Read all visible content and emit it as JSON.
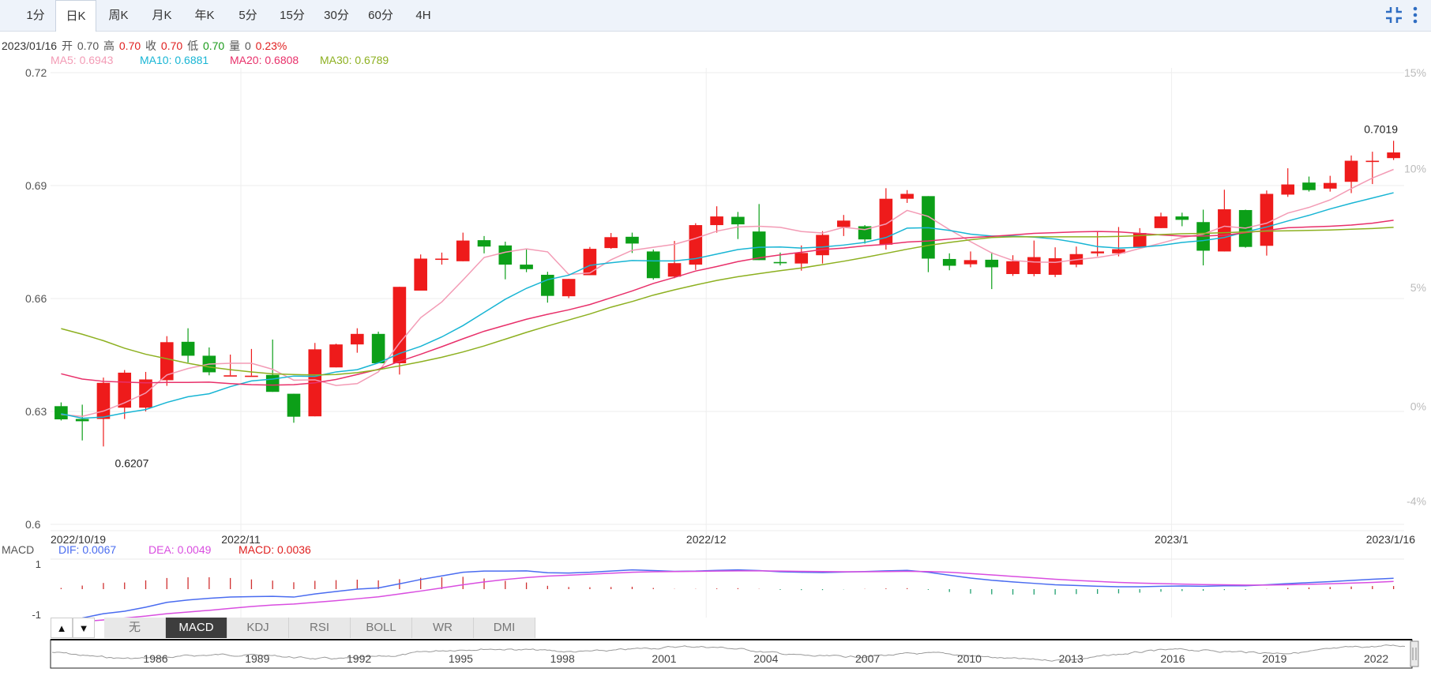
{
  "tabs": [
    {
      "label": "1分",
      "active": false
    },
    {
      "label": "日K",
      "active": true
    },
    {
      "label": "周K",
      "active": false
    },
    {
      "label": "月K",
      "active": false
    },
    {
      "label": "年K",
      "active": false
    },
    {
      "label": "5分",
      "active": false
    },
    {
      "label": "15分",
      "active": false
    },
    {
      "label": "30分",
      "active": false
    },
    {
      "label": "60分",
      "active": false
    },
    {
      "label": "4H",
      "active": false
    }
  ],
  "toolbar": {
    "collapse_icon": "collapse-icon",
    "more_icon": "more-vertical-icon"
  },
  "info": {
    "date": "2023/01/16",
    "open_label": "开",
    "open": "0.70",
    "high_label": "高",
    "high": "0.70",
    "close_label": "收",
    "close": "0.70",
    "low_label": "低",
    "low": "0.70",
    "volume_label": "量",
    "volume": "0",
    "change": "0.23%"
  },
  "ma_legend": [
    {
      "label": "MA5: 0.6943",
      "color": "#f39bb5"
    },
    {
      "label": "MA10: 0.6881",
      "color": "#18b5d4"
    },
    {
      "label": "MA20: 0.6808",
      "color": "#e8306a"
    },
    {
      "label": "MA30: 0.6789",
      "color": "#8db020"
    }
  ],
  "macd_legend": {
    "title": "MACD",
    "dif": "DIF: 0.0067",
    "dif_color": "#4a6cf0",
    "dea": "DEA: 0.0049",
    "dea_color": "#d94ee0",
    "macd": "MACD: 0.0036",
    "macd_color": "#e02020"
  },
  "indicators": {
    "up_icon": "▲",
    "down_icon": "▼",
    "items": [
      {
        "label": "无",
        "active": false
      },
      {
        "label": "MACD",
        "active": true
      },
      {
        "label": "KDJ",
        "active": false
      },
      {
        "label": "RSI",
        "active": false
      },
      {
        "label": "BOLL",
        "active": false
      },
      {
        "label": "WR",
        "active": false
      },
      {
        "label": "DMI",
        "active": false
      }
    ]
  },
  "chart_data": {
    "type": "candlestick",
    "y_ticks": [
      "0.72",
      "0.69",
      "0.66",
      "0.63",
      "0.6"
    ],
    "pct_ticks": [
      "15%",
      "10%",
      "5%",
      "0%",
      "-4%"
    ],
    "ylim": [
      0.6,
      0.72
    ],
    "x_labels": [
      {
        "label": "2022/10/19",
        "index": 0
      },
      {
        "label": "2022/11",
        "index": 9
      },
      {
        "label": "2022/12",
        "index": 31
      },
      {
        "label": "2023/1",
        "index": 53
      },
      {
        "label": "2023/1/16",
        "index": 63
      }
    ],
    "annotations": [
      {
        "label": "0.6207",
        "index": 2,
        "value": 0.6207
      },
      {
        "label": "0.7019",
        "index": 63,
        "value": 0.7019
      }
    ],
    "candles": [
      [
        0.6314,
        0.6279,
        0.6324,
        0.6276
      ],
      [
        0.628,
        0.6274,
        0.6318,
        0.6223
      ],
      [
        0.628,
        0.6376,
        0.639,
        0.6207
      ],
      [
        0.631,
        0.6403,
        0.641,
        0.628
      ],
      [
        0.631,
        0.6385,
        0.6405,
        0.63
      ],
      [
        0.6383,
        0.6484,
        0.65,
        0.6368
      ],
      [
        0.6485,
        0.6448,
        0.6521,
        0.643
      ],
      [
        0.6448,
        0.6404,
        0.647,
        0.6396
      ],
      [
        0.6396,
        0.6396,
        0.6451,
        0.6396
      ],
      [
        0.6395,
        0.6395,
        0.6466,
        0.6395
      ],
      [
        0.6397,
        0.6352,
        0.6491,
        0.6352
      ],
      [
        0.6347,
        0.6286,
        0.6347,
        0.627
      ],
      [
        0.6287,
        0.6465,
        0.6482,
        0.6287
      ],
      [
        0.6417,
        0.6478,
        0.648,
        0.6417
      ],
      [
        0.6478,
        0.6506,
        0.6521,
        0.6456
      ],
      [
        0.6506,
        0.6428,
        0.6512,
        0.6428
      ],
      [
        0.6428,
        0.6631,
        0.6631,
        0.6398
      ],
      [
        0.6621,
        0.6706,
        0.6717,
        0.6621
      ],
      [
        0.6706,
        0.6706,
        0.6722,
        0.669
      ],
      [
        0.6699,
        0.6754,
        0.6775,
        0.6699
      ],
      [
        0.6755,
        0.6738,
        0.6766,
        0.672
      ],
      [
        0.6741,
        0.669,
        0.6751,
        0.6651
      ],
      [
        0.669,
        0.6678,
        0.673,
        0.667
      ],
      [
        0.6663,
        0.6607,
        0.6671,
        0.6589
      ],
      [
        0.6606,
        0.6652,
        0.6652,
        0.6601
      ],
      [
        0.6662,
        0.6732,
        0.6737,
        0.6662
      ],
      [
        0.6734,
        0.6763,
        0.6774,
        0.6732
      ],
      [
        0.6764,
        0.6746,
        0.6775,
        0.6721
      ],
      [
        0.6725,
        0.6654,
        0.673,
        0.665
      ],
      [
        0.6658,
        0.6694,
        0.6753,
        0.6654
      ],
      [
        0.669,
        0.6795,
        0.68,
        0.6676
      ],
      [
        0.6795,
        0.6818,
        0.6845,
        0.6775
      ],
      [
        0.6817,
        0.6797,
        0.683,
        0.6758
      ],
      [
        0.6778,
        0.6702,
        0.6851,
        0.6702
      ],
      [
        0.6697,
        0.6694,
        0.6722,
        0.6688
      ],
      [
        0.6693,
        0.6721,
        0.6741,
        0.6674
      ],
      [
        0.6715,
        0.6769,
        0.6779,
        0.6693
      ],
      [
        0.679,
        0.6807,
        0.6822,
        0.6766
      ],
      [
        0.6792,
        0.6757,
        0.6795,
        0.6746
      ],
      [
        0.6743,
        0.6865,
        0.6893,
        0.673
      ],
      [
        0.6865,
        0.6878,
        0.6888,
        0.6854
      ],
      [
        0.6872,
        0.6706,
        0.6872,
        0.667
      ],
      [
        0.6705,
        0.6687,
        0.672,
        0.6675
      ],
      [
        0.6691,
        0.6702,
        0.6725,
        0.6683
      ],
      [
        0.6703,
        0.6683,
        0.6723,
        0.6625
      ],
      [
        0.6665,
        0.6699,
        0.6715,
        0.666
      ],
      [
        0.6665,
        0.671,
        0.6754,
        0.6659
      ],
      [
        0.6663,
        0.6707,
        0.6736,
        0.6657
      ],
      [
        0.669,
        0.6718,
        0.6738,
        0.6683
      ],
      [
        0.672,
        0.6725,
        0.6779,
        0.6712
      ],
      [
        0.672,
        0.6731,
        0.679,
        0.6712
      ],
      [
        0.6736,
        0.6774,
        0.6787,
        0.6735
      ],
      [
        0.6787,
        0.6818,
        0.6828,
        0.6787
      ],
      [
        0.6818,
        0.6809,
        0.6828,
        0.6792
      ],
      [
        0.6803,
        0.6727,
        0.6836,
        0.6688
      ],
      [
        0.6725,
        0.6837,
        0.6889,
        0.6725
      ],
      [
        0.6835,
        0.6737,
        0.6836,
        0.6735
      ],
      [
        0.674,
        0.6878,
        0.6887,
        0.6714
      ],
      [
        0.6876,
        0.6903,
        0.6946,
        0.687
      ],
      [
        0.6908,
        0.6888,
        0.6924,
        0.6884
      ],
      [
        0.6892,
        0.6907,
        0.6926,
        0.6884
      ],
      [
        0.691,
        0.6966,
        0.698,
        0.688
      ],
      [
        0.6965,
        0.6966,
        0.699,
        0.6904
      ],
      [
        0.6973,
        0.6988,
        0.7019,
        0.6968
      ]
    ],
    "ma5": [
      0.6292,
      0.6287,
      0.6301,
      0.6323,
      0.6349,
      0.6397,
      0.6414,
      0.6426,
      0.6428,
      0.6428,
      0.6412,
      0.6383,
      0.6384,
      0.6369,
      0.6374,
      0.6405,
      0.6482,
      0.6549,
      0.6591,
      0.6649,
      0.6709,
      0.6723,
      0.6732,
      0.6724,
      0.6664,
      0.6668,
      0.6703,
      0.6728,
      0.6736,
      0.6744,
      0.676,
      0.6779,
      0.679,
      0.6792,
      0.6789,
      0.6778,
      0.6774,
      0.6789,
      0.6783,
      0.6798,
      0.6834,
      0.6818,
      0.6783,
      0.6751,
      0.6721,
      0.6701,
      0.6697,
      0.6696,
      0.6703,
      0.6709,
      0.6718,
      0.6733,
      0.6747,
      0.6762,
      0.6771,
      0.6792,
      0.6787,
      0.68,
      0.6827,
      0.6842,
      0.6862,
      0.6892,
      0.692,
      0.6943
    ],
    "ma10": [
      0.6294,
      0.6282,
      0.6285,
      0.6296,
      0.6305,
      0.6324,
      0.6339,
      0.6347,
      0.6366,
      0.6381,
      0.6386,
      0.6394,
      0.6393,
      0.6405,
      0.6411,
      0.6429,
      0.6454,
      0.6473,
      0.6498,
      0.6528,
      0.6563,
      0.6598,
      0.6627,
      0.665,
      0.6662,
      0.6688,
      0.6695,
      0.6701,
      0.67,
      0.67,
      0.6706,
      0.6718,
      0.673,
      0.6736,
      0.6737,
      0.6734,
      0.6737,
      0.6742,
      0.6749,
      0.6762,
      0.6787,
      0.6788,
      0.6781,
      0.6771,
      0.6766,
      0.6766,
      0.6763,
      0.6758,
      0.6749,
      0.6738,
      0.6734,
      0.6736,
      0.6741,
      0.6749,
      0.6754,
      0.6762,
      0.6777,
      0.679,
      0.6806,
      0.6821,
      0.6838,
      0.6853,
      0.6867,
      0.6881
    ],
    "ma20": [
      0.64,
      0.6386,
      0.638,
      0.6378,
      0.6376,
      0.6377,
      0.6377,
      0.6378,
      0.6374,
      0.6371,
      0.637,
      0.6371,
      0.6376,
      0.6385,
      0.6398,
      0.6412,
      0.6433,
      0.6452,
      0.6472,
      0.6493,
      0.6513,
      0.6529,
      0.6545,
      0.6558,
      0.657,
      0.6584,
      0.6602,
      0.662,
      0.664,
      0.6656,
      0.6673,
      0.6685,
      0.6698,
      0.6708,
      0.6716,
      0.6723,
      0.673,
      0.6734,
      0.674,
      0.6744,
      0.675,
      0.6753,
      0.6758,
      0.6762,
      0.6765,
      0.6769,
      0.6773,
      0.6775,
      0.6777,
      0.6778,
      0.6777,
      0.6773,
      0.6769,
      0.6766,
      0.6766,
      0.6768,
      0.6775,
      0.6781,
      0.6788,
      0.679,
      0.6792,
      0.6795,
      0.68,
      0.6808
    ],
    "ma30": [
      0.652,
      0.6505,
      0.6488,
      0.6468,
      0.6452,
      0.644,
      0.6428,
      0.6418,
      0.6411,
      0.6405,
      0.64,
      0.6398,
      0.6397,
      0.6398,
      0.6403,
      0.6411,
      0.6421,
      0.6432,
      0.6444,
      0.6458,
      0.6474,
      0.6492,
      0.651,
      0.6527,
      0.6543,
      0.6559,
      0.6577,
      0.6592,
      0.6609,
      0.6623,
      0.6636,
      0.6648,
      0.6658,
      0.6666,
      0.6674,
      0.6681,
      0.669,
      0.6699,
      0.6709,
      0.672,
      0.6731,
      0.6741,
      0.6749,
      0.6756,
      0.6762,
      0.6764,
      0.6764,
      0.6764,
      0.6764,
      0.6764,
      0.6765,
      0.6767,
      0.677,
      0.6772,
      0.6773,
      0.6775,
      0.6777,
      0.6779,
      0.678,
      0.6781,
      0.6782,
      0.6784,
      0.6786,
      0.6789
    ],
    "macd_ticks": [
      "1",
      "-1"
    ],
    "macd": {
      "dif": [
        -1.35,
        -1.2,
        -1.02,
        -0.92,
        -0.75,
        -0.55,
        -0.45,
        -0.38,
        -0.33,
        -0.31,
        -0.3,
        -0.33,
        -0.2,
        -0.1,
        0.0,
        0.05,
        0.22,
        0.4,
        0.55,
        0.7,
        0.75,
        0.75,
        0.76,
        0.68,
        0.67,
        0.7,
        0.75,
        0.8,
        0.77,
        0.74,
        0.75,
        0.78,
        0.8,
        0.77,
        0.72,
        0.7,
        0.69,
        0.71,
        0.73,
        0.76,
        0.78,
        0.7,
        0.58,
        0.46,
        0.37,
        0.3,
        0.24,
        0.18,
        0.15,
        0.12,
        0.1,
        0.1,
        0.12,
        0.13,
        0.12,
        0.14,
        0.14,
        0.18,
        0.23,
        0.27,
        0.31,
        0.36,
        0.41,
        0.45
      ],
      "dea": [
        -1.4,
        -1.35,
        -1.28,
        -1.2,
        -1.12,
        -1.02,
        -0.95,
        -0.88,
        -0.8,
        -0.72,
        -0.66,
        -0.62,
        -0.55,
        -0.48,
        -0.4,
        -0.32,
        -0.2,
        -0.08,
        0.05,
        0.18,
        0.3,
        0.4,
        0.48,
        0.54,
        0.58,
        0.62,
        0.66,
        0.7,
        0.72,
        0.73,
        0.74,
        0.75,
        0.76,
        0.76,
        0.75,
        0.74,
        0.73,
        0.72,
        0.72,
        0.73,
        0.74,
        0.73,
        0.7,
        0.65,
        0.59,
        0.53,
        0.47,
        0.41,
        0.36,
        0.32,
        0.28,
        0.25,
        0.23,
        0.21,
        0.19,
        0.18,
        0.17,
        0.17,
        0.18,
        0.2,
        0.22,
        0.25,
        0.28,
        0.32
      ],
      "hist": [
        0.05,
        0.15,
        0.26,
        0.28,
        0.37,
        0.47,
        0.5,
        0.5,
        0.47,
        0.41,
        0.36,
        0.29,
        0.35,
        0.38,
        0.4,
        0.37,
        0.42,
        0.48,
        0.5,
        0.52,
        0.45,
        0.35,
        0.28,
        0.14,
        0.09,
        0.08,
        0.09,
        0.1,
        0.05,
        0.01,
        0.01,
        0.03,
        0.04,
        0.01,
        -0.03,
        -0.04,
        -0.04,
        -0.01,
        0.01,
        0.03,
        0.04,
        -0.03,
        -0.12,
        -0.19,
        -0.22,
        -0.23,
        -0.23,
        -0.23,
        -0.21,
        -0.2,
        -0.18,
        -0.15,
        -0.11,
        -0.08,
        -0.07,
        -0.04,
        -0.03,
        0.01,
        0.05,
        0.07,
        0.09,
        0.11,
        0.13,
        0.13
      ]
    }
  },
  "navigator": {
    "years": [
      "1986",
      "1989",
      "1992",
      "1995",
      "1998",
      "2001",
      "2004",
      "2007",
      "2010",
      "2013",
      "2016",
      "2019",
      "2022"
    ]
  }
}
